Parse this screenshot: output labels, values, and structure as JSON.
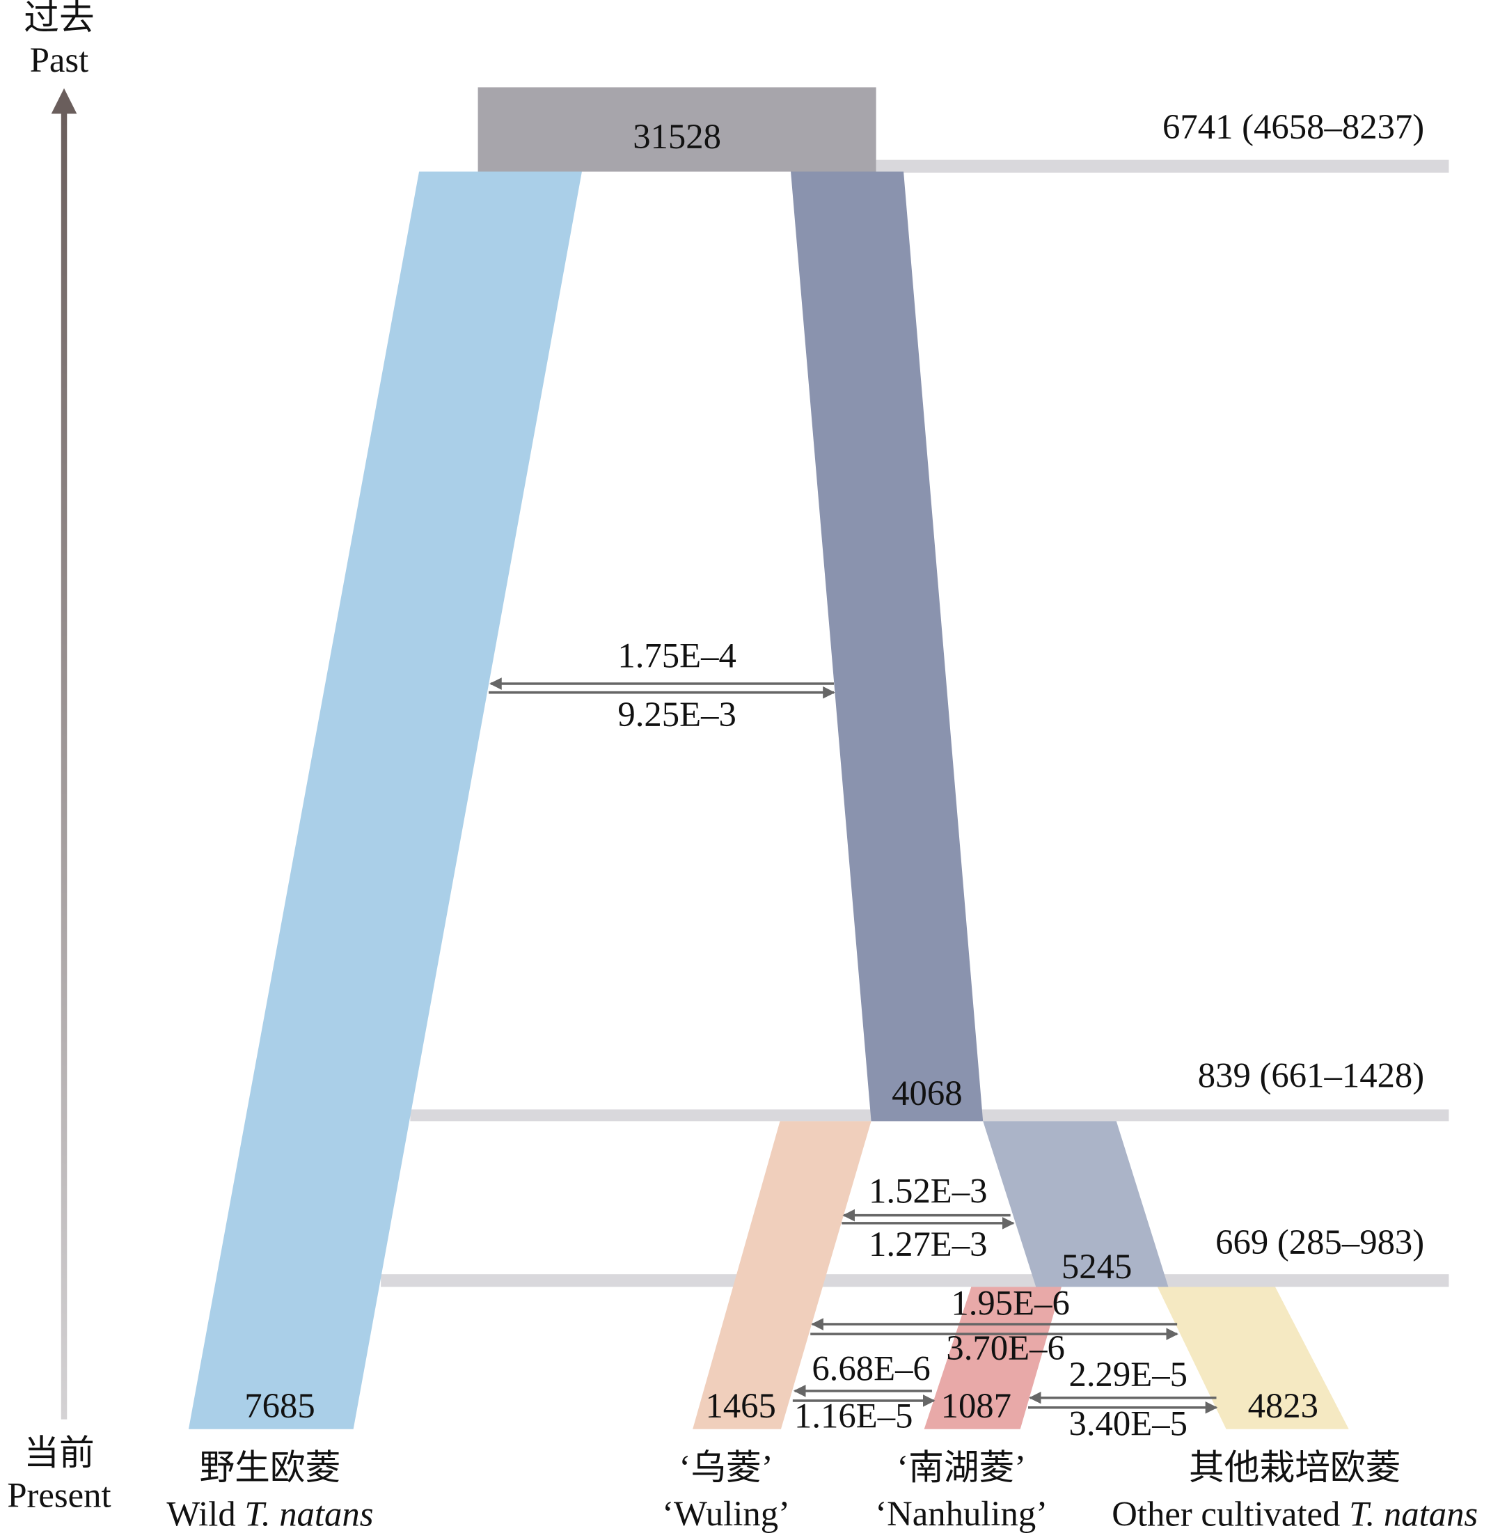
{
  "axis": {
    "past_zh": "过去",
    "past_en": "Past",
    "present_zh": "当前",
    "present_en": "Present"
  },
  "ancestor": {
    "size": 31528
  },
  "times": [
    "6741 (4658–8237)",
    "839 (661–1428)",
    "669 (285–983)"
  ],
  "branches": {
    "wild": 7685,
    "internal": 4068,
    "cultivated_ancestor": 5245,
    "wuling": 1465,
    "nanhuling": 1087,
    "other": 4823
  },
  "migrations": [
    {
      "up": "1.75E–4",
      "down": "9.25E–3"
    },
    {
      "up": "1.52E–3",
      "down": "1.27E–3"
    },
    {
      "up": "1.95E–6",
      "down": "3.70E–6"
    },
    {
      "up": "6.68E–6",
      "down": "1.16E–5"
    },
    {
      "up": "2.29E–5",
      "down": "3.40E–5"
    }
  ],
  "populations": [
    {
      "zh": "野生欧菱",
      "en": "Wild ",
      "en_italic": "T. natans"
    },
    {
      "zh": "‘乌菱’",
      "en": "‘Wuling’"
    },
    {
      "zh": "‘南湖菱’",
      "en": "‘Nanhuling’"
    },
    {
      "zh": "其他栽培欧菱",
      "en": "Other cultivated ",
      "en_italic": "T. natans"
    }
  ]
}
